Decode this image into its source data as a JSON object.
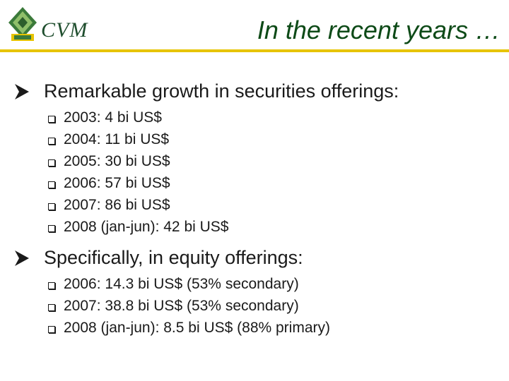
{
  "header": {
    "logo_text": "CVM",
    "title": "In the recent years …",
    "accent_color": "#e7c400",
    "brand_color": "#1f4e2e"
  },
  "sections": [
    {
      "heading": "Remarkable growth in securities offerings:",
      "items": [
        "2003: 4 bi US$",
        "2004: 11 bi US$",
        "2005: 30 bi US$",
        "2006: 57 bi US$",
        "2007: 86 bi US$",
        "2008 (jan-jun): 42 bi US$"
      ]
    },
    {
      "heading": "Specifically, in equity offerings:",
      "items": [
        "2006: 14.3 bi US$ (53% secondary)",
        "2007: 38.8 bi US$ (53% secondary)",
        "2008 (jan-jun): 8.5 bi US$ (88% primary)"
      ]
    }
  ],
  "icons": {
    "logo": "cvm-logo-icon",
    "heading_bullet": "arrow-bullet-icon",
    "item_bullet": "checkbox-bullet-icon"
  }
}
